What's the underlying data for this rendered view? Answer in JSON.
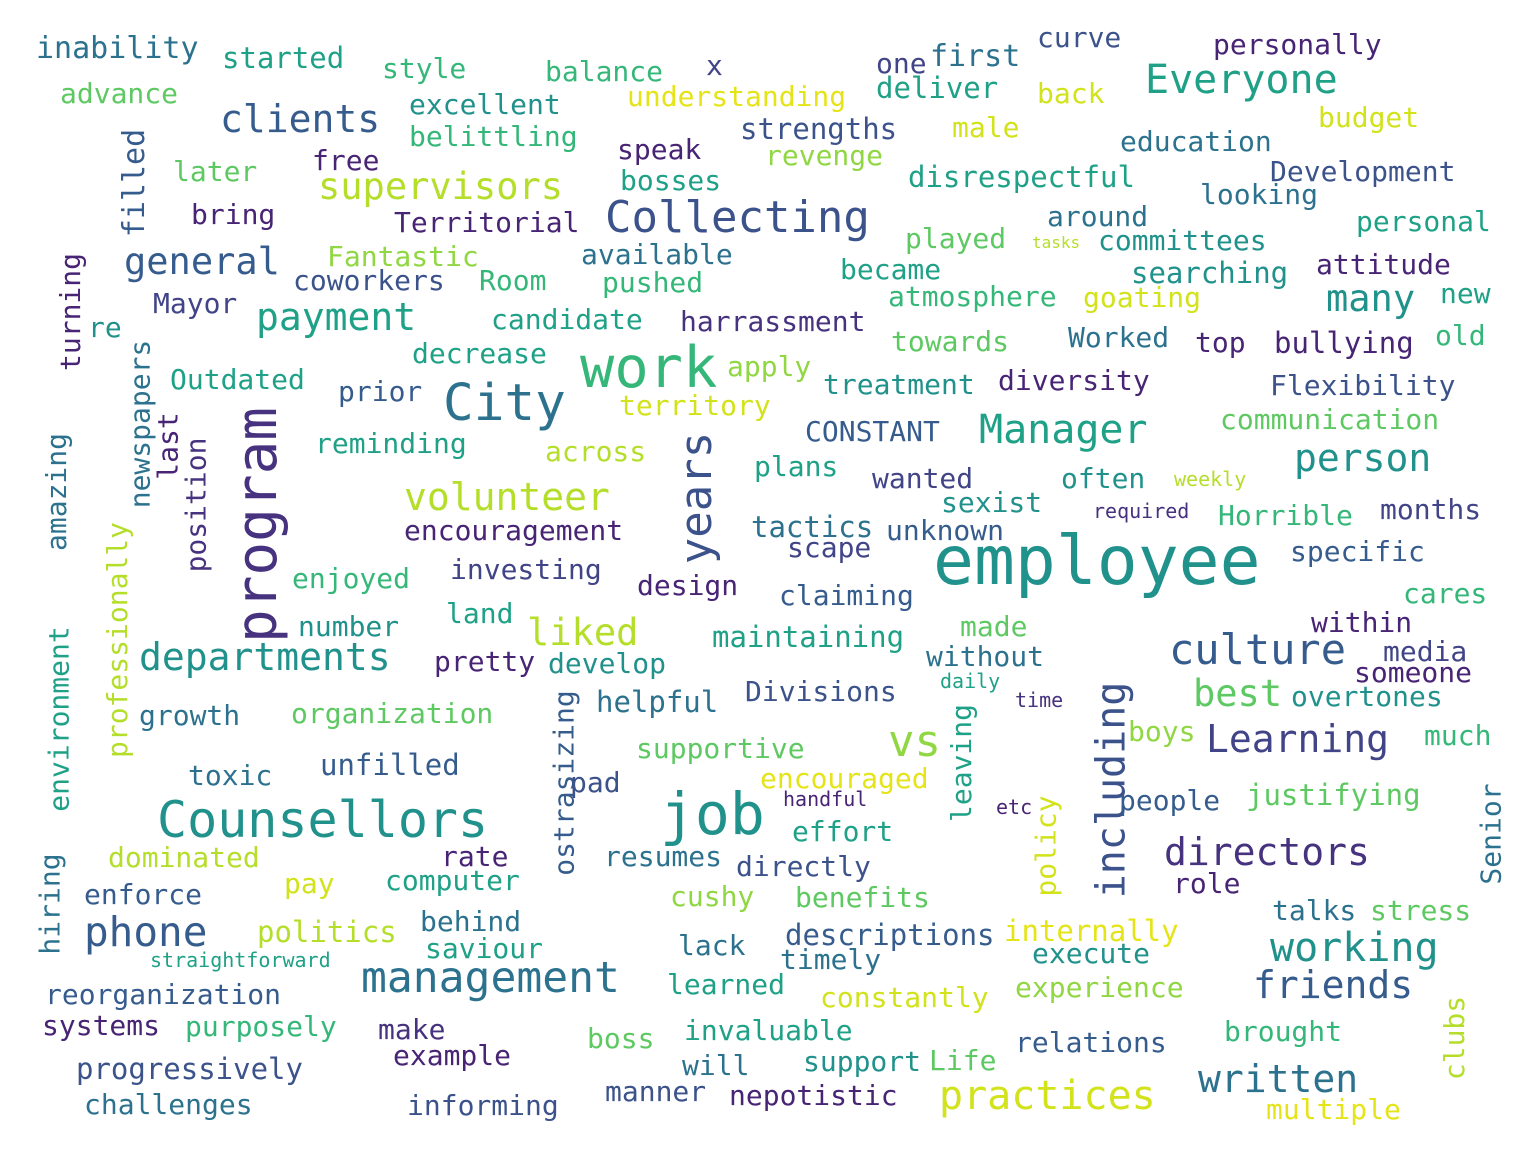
{
  "palette": {
    "purple": "#46327e",
    "darkpurple": "#482475",
    "indigo": "#414487",
    "blue": "#365c8d",
    "slate": "#3b528b",
    "steel": "#2c728e",
    "teal": "#21918c",
    "tealgreen": "#1fa187",
    "green": "#35b779",
    "lightgreen": "#5ec962",
    "lime": "#90d743",
    "yellowgreen": "#b5de2b",
    "yellow": "#d2e21b",
    "brightyellow": "#e5e419"
  },
  "words": [
    {
      "text": "inability"
    },
    {
      "text": "started"
    },
    {
      "text": "style"
    },
    {
      "text": "balance"
    },
    {
      "text": "x"
    },
    {
      "text": "one"
    },
    {
      "text": "first"
    },
    {
      "text": "curve"
    },
    {
      "text": "personally"
    },
    {
      "text": "advance"
    },
    {
      "text": "excellent"
    },
    {
      "text": "understanding"
    },
    {
      "text": "deliver"
    },
    {
      "text": "back"
    },
    {
      "text": "Everyone"
    },
    {
      "text": "clients"
    },
    {
      "text": "belittling"
    },
    {
      "text": "strengths"
    },
    {
      "text": "male"
    },
    {
      "text": "budget"
    },
    {
      "text": "filled"
    },
    {
      "text": "later"
    },
    {
      "text": "free"
    },
    {
      "text": "speak"
    },
    {
      "text": "revenge"
    },
    {
      "text": "education"
    },
    {
      "text": "supervisors"
    },
    {
      "text": "bosses"
    },
    {
      "text": "disrespectful"
    },
    {
      "text": "Development"
    },
    {
      "text": "bring"
    },
    {
      "text": "Territorial"
    },
    {
      "text": "Collecting"
    },
    {
      "text": "looking"
    },
    {
      "text": "around"
    },
    {
      "text": "personal"
    },
    {
      "text": "general"
    },
    {
      "text": "Fantastic"
    },
    {
      "text": "available"
    },
    {
      "text": "played"
    },
    {
      "text": "tasks"
    },
    {
      "text": "committees"
    },
    {
      "text": "turning"
    },
    {
      "text": "coworkers"
    },
    {
      "text": "Room"
    },
    {
      "text": "pushed"
    },
    {
      "text": "became"
    },
    {
      "text": "searching"
    },
    {
      "text": "attitude"
    },
    {
      "text": "Mayor"
    },
    {
      "text": "atmosphere"
    },
    {
      "text": "goating"
    },
    {
      "text": "many"
    },
    {
      "text": "new"
    },
    {
      "text": "payment"
    },
    {
      "text": "candidate"
    },
    {
      "text": "harrassment"
    },
    {
      "text": "re"
    },
    {
      "text": "towards"
    },
    {
      "text": "Worked"
    },
    {
      "text": "top"
    },
    {
      "text": "bullying"
    },
    {
      "text": "old"
    },
    {
      "text": "work"
    },
    {
      "text": "decrease"
    },
    {
      "text": "apply"
    },
    {
      "text": "Outdated"
    },
    {
      "text": "newspapers"
    },
    {
      "text": "prior"
    },
    {
      "text": "City"
    },
    {
      "text": "treatment"
    },
    {
      "text": "diversity"
    },
    {
      "text": "Flexibility"
    },
    {
      "text": "program"
    },
    {
      "text": "territory"
    },
    {
      "text": "last"
    },
    {
      "text": "CONSTANT"
    },
    {
      "text": "Manager"
    },
    {
      "text": "communication"
    },
    {
      "text": "amazing"
    },
    {
      "text": "position"
    },
    {
      "text": "reminding"
    },
    {
      "text": "across"
    },
    {
      "text": "years"
    },
    {
      "text": "plans"
    },
    {
      "text": "person"
    },
    {
      "text": "wanted"
    },
    {
      "text": "often"
    },
    {
      "text": "weekly"
    },
    {
      "text": "volunteer"
    },
    {
      "text": "sexist"
    },
    {
      "text": "professionally"
    },
    {
      "text": "Horrible"
    },
    {
      "text": "required"
    },
    {
      "text": "months"
    },
    {
      "text": "encouragement"
    },
    {
      "text": "tactics"
    },
    {
      "text": "unknown"
    },
    {
      "text": "scape"
    },
    {
      "text": "employee"
    },
    {
      "text": "specific"
    },
    {
      "text": "enjoyed"
    },
    {
      "text": "investing"
    },
    {
      "text": "design"
    },
    {
      "text": "claiming"
    },
    {
      "text": "cares"
    },
    {
      "text": "environment"
    },
    {
      "text": "land"
    },
    {
      "text": "number"
    },
    {
      "text": "liked"
    },
    {
      "text": "within"
    },
    {
      "text": "made"
    },
    {
      "text": "maintaining"
    },
    {
      "text": "departments"
    },
    {
      "text": "culture"
    },
    {
      "text": "media"
    },
    {
      "text": "pretty"
    },
    {
      "text": "develop"
    },
    {
      "text": "without"
    },
    {
      "text": "someone"
    },
    {
      "text": "daily"
    },
    {
      "text": "time"
    },
    {
      "text": "best"
    },
    {
      "text": "overtones"
    },
    {
      "text": "growth"
    },
    {
      "text": "organization"
    },
    {
      "text": "ostrasizing"
    },
    {
      "text": "helpful"
    },
    {
      "text": "Divisions"
    },
    {
      "text": "including"
    },
    {
      "text": "Learning"
    },
    {
      "text": "supportive"
    },
    {
      "text": "vs"
    },
    {
      "text": "leaving"
    },
    {
      "text": "boys"
    },
    {
      "text": "much"
    },
    {
      "text": "toxic"
    },
    {
      "text": "unfilled"
    },
    {
      "text": "encouraged"
    },
    {
      "text": "pad"
    },
    {
      "text": "handful"
    },
    {
      "text": "Counsellors"
    },
    {
      "text": "job"
    },
    {
      "text": "etc"
    },
    {
      "text": "people"
    },
    {
      "text": "justifying"
    },
    {
      "text": "Senior"
    },
    {
      "text": "effort"
    },
    {
      "text": "policy"
    },
    {
      "text": "dominated"
    },
    {
      "text": "rate"
    },
    {
      "text": "resumes"
    },
    {
      "text": "directly"
    },
    {
      "text": "directors"
    },
    {
      "text": "hiring"
    },
    {
      "text": "pay"
    },
    {
      "text": "computer"
    },
    {
      "text": "role"
    },
    {
      "text": "enforce"
    },
    {
      "text": "cushy"
    },
    {
      "text": "benefits"
    },
    {
      "text": "behind"
    },
    {
      "text": "talks"
    },
    {
      "text": "stress"
    },
    {
      "text": "phone"
    },
    {
      "text": "politics"
    },
    {
      "text": "descriptions"
    },
    {
      "text": "internally"
    },
    {
      "text": "lack"
    },
    {
      "text": "saviour"
    },
    {
      "text": "working"
    },
    {
      "text": "straightforward"
    },
    {
      "text": "timely"
    },
    {
      "text": "execute"
    },
    {
      "text": "management"
    },
    {
      "text": "reorganization"
    },
    {
      "text": "learned"
    },
    {
      "text": "friends"
    },
    {
      "text": "experience"
    },
    {
      "text": "constantly"
    },
    {
      "text": "clubs"
    },
    {
      "text": "systems"
    },
    {
      "text": "purposely"
    },
    {
      "text": "invaluable"
    },
    {
      "text": "make"
    },
    {
      "text": "brought"
    },
    {
      "text": "boss"
    },
    {
      "text": "relations"
    },
    {
      "text": "example"
    },
    {
      "text": "progressively"
    },
    {
      "text": "will"
    },
    {
      "text": "support"
    },
    {
      "text": "Life"
    },
    {
      "text": "written"
    },
    {
      "text": "practices"
    },
    {
      "text": "challenges"
    },
    {
      "text": "informing"
    },
    {
      "text": "manner"
    },
    {
      "text": "nepotistic"
    },
    {
      "text": "multiple"
    }
  ]
}
